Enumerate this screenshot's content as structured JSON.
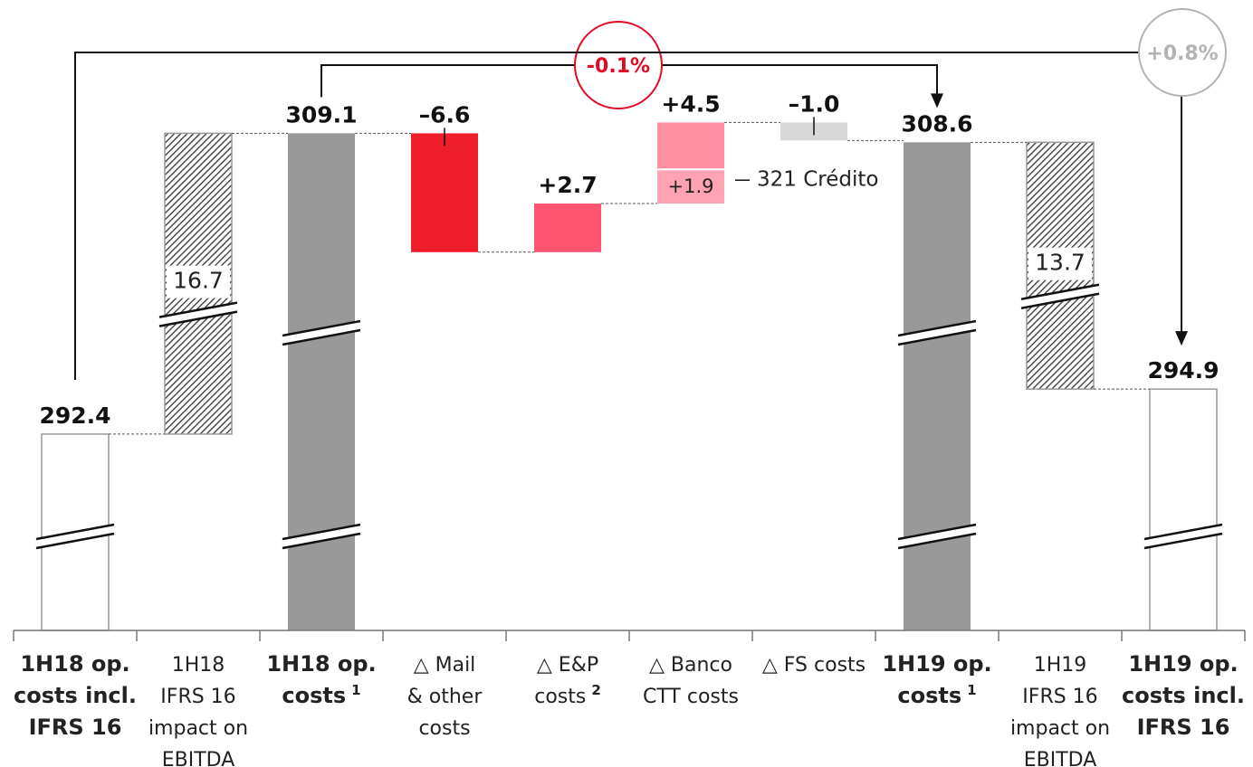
{
  "chart_data": {
    "type": "waterfall",
    "categories": [
      [
        "1H18 op.",
        "costs incl.",
        "IFRS 16"
      ],
      [
        "1H18",
        "IFRS 16",
        "impact on",
        "EBITDA"
      ],
      [
        "1H18 op.",
        "costs"
      ],
      [
        "△ Mail",
        "& other",
        "costs"
      ],
      [
        "△ E&P",
        "costs"
      ],
      [
        "△ Banco",
        "CTT costs"
      ],
      [
        "△ FS costs"
      ],
      [
        "1H19 op.",
        "costs"
      ],
      [
        "1H19",
        "IFRS 16",
        "impact on",
        "EBITDA"
      ],
      [
        "1H19 op.",
        "costs incl.",
        "IFRS 16"
      ]
    ],
    "category_notes": [
      null,
      null,
      "1",
      null,
      "2",
      null,
      null,
      "1",
      null,
      null
    ],
    "measure": [
      "total",
      "bridge",
      "total",
      "delta",
      "delta",
      "delta",
      "delta",
      "total",
      "bridge",
      "total"
    ],
    "values": [
      292.4,
      16.7,
      309.1,
      -6.6,
      2.7,
      4.5,
      -1.0,
      308.6,
      13.7,
      294.9
    ],
    "value_labels": [
      "292.4",
      "16.7",
      "309.1",
      "–6.6",
      "+2.7",
      "+4.5",
      "–1.0",
      "308.6",
      "13.7",
      "294.9"
    ],
    "bar_styles": [
      "outline",
      "hatch",
      "solid",
      "solid",
      "solid",
      "solid",
      "solid",
      "solid",
      "hatch",
      "outline"
    ],
    "colors": [
      "#ffffff",
      "#ffffff",
      "#999999",
      "#ee1f2b",
      "#ff5570",
      "#ff8fa3",
      "#d9d9d9",
      "#999999",
      "#ffffff",
      "#ffffff"
    ],
    "breakdown": {
      "value": 1.9,
      "label": "+1.9",
      "annotation": "321 Crédito",
      "color": "#ffa3b2"
    },
    "comparisons": [
      {
        "label": "-0.1%",
        "color": "#e30a26"
      },
      {
        "label": "+0.8%",
        "color": "#b3b3b3"
      }
    ],
    "ylim": [
      281.5,
      316.5
    ]
  }
}
